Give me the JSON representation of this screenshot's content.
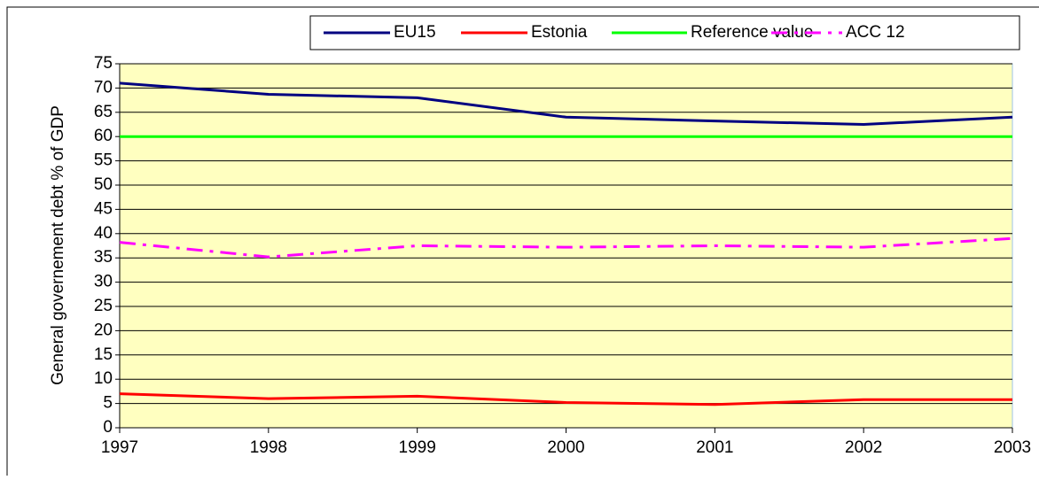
{
  "chart_data": {
    "type": "line",
    "y_label": "General governement debt % of GDP",
    "x": [
      1997,
      1998,
      1999,
      2000,
      2001,
      2002,
      2003
    ],
    "xlim": [
      1997,
      2003
    ],
    "xticks": [
      1997,
      1998,
      1999,
      2000,
      2001,
      2002,
      2003
    ],
    "ylim": [
      0,
      75
    ],
    "yticks": [
      0,
      5,
      10,
      15,
      20,
      25,
      30,
      35,
      40,
      45,
      50,
      55,
      60,
      65,
      70,
      75
    ],
    "grid": true,
    "legend": "top",
    "series": [
      {
        "name": "EU15",
        "color": "#000080",
        "dash": "solid",
        "values": [
          71,
          68.7,
          68,
          64,
          63.2,
          62.5,
          64
        ]
      },
      {
        "name": "Estonia",
        "color": "#ff0000",
        "dash": "solid",
        "values": [
          7,
          6,
          6.5,
          5.2,
          4.8,
          5.8,
          5.8
        ]
      },
      {
        "name": "Reference value",
        "color": "#00ff00",
        "dash": "solid",
        "values": [
          60,
          60,
          60,
          60,
          60,
          60,
          60
        ]
      },
      {
        "name": "ACC 12",
        "color": "#ff00ff",
        "dash": "dashdot",
        "values": [
          38.2,
          35.2,
          37.5,
          37.2,
          37.5,
          37.2,
          39
        ]
      }
    ]
  }
}
